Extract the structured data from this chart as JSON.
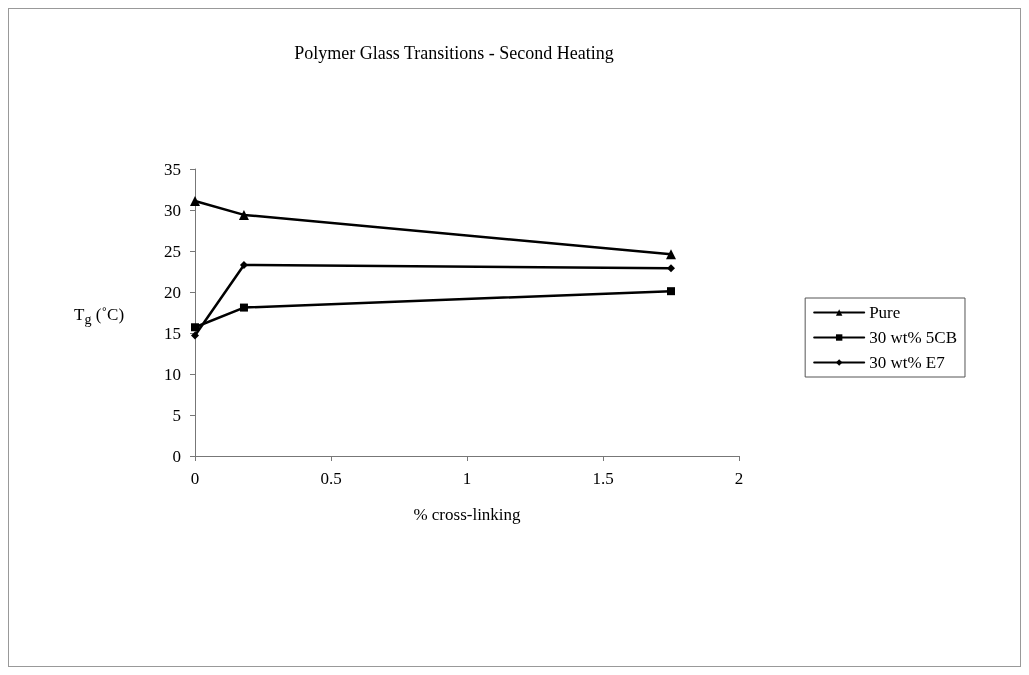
{
  "chart_data": {
    "type": "line",
    "title": "Polymer Glass Transitions - Second Heating",
    "xlabel": "% cross-linking",
    "ylabel": "T$_{g}$ (˚C)",
    "x": [
      0,
      0.18,
      1.75
    ],
    "series": [
      {
        "name": "Pure",
        "color": "#000000",
        "marker": "triangle",
        "values": [
          31.1,
          29.4,
          24.6
        ]
      },
      {
        "name": "30 wt% 5CB",
        "color": "#000000",
        "marker": "square",
        "values": [
          15.7,
          18.1,
          20.1
        ]
      },
      {
        "name": "30 wt% E7",
        "color": "#000000",
        "marker": "diamond",
        "values": [
          14.7,
          23.3,
          22.9
        ]
      }
    ],
    "xlim": [
      0,
      2
    ],
    "xticks": [
      0,
      0.5,
      1,
      1.5,
      2
    ],
    "ylim": [
      0,
      35
    ],
    "yticks": [
      0,
      5,
      10,
      15,
      20,
      25,
      30,
      35
    ],
    "grid": false,
    "legend": "right",
    "line_style": "solid"
  }
}
